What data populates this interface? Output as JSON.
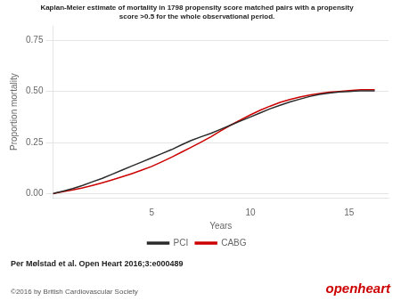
{
  "chart_data": {
    "type": "line",
    "title": [
      "Kaplan-Meier estimate of mortality in 1798 propensity score matched pairs with a propensity",
      "score >0.5 for the whole observational period."
    ],
    "x_label": "Years",
    "y_label": "Proportion mortality",
    "x": [
      0,
      0.2,
      0.5,
      1.0,
      1.5,
      2.0,
      2.5,
      3.0,
      3.5,
      4.0,
      4.5,
      5.0,
      5.5,
      6.0,
      6.5,
      7.0,
      7.5,
      8.0,
      8.5,
      9.0,
      9.5,
      10.0,
      10.5,
      11.0,
      11.5,
      12.0,
      12.5,
      13.0,
      13.5,
      14.0,
      14.5,
      15.0,
      15.3,
      15.6,
      16.0,
      16.3
    ],
    "series": [
      {
        "name": "PCI",
        "color": "#2b2b2b",
        "values": [
          0.0,
          0.005,
          0.012,
          0.025,
          0.04,
          0.058,
          0.075,
          0.095,
          0.115,
          0.135,
          0.155,
          0.175,
          0.195,
          0.215,
          0.238,
          0.26,
          0.278,
          0.295,
          0.315,
          0.335,
          0.355,
          0.375,
          0.395,
          0.415,
          0.432,
          0.448,
          0.462,
          0.475,
          0.485,
          0.492,
          0.497,
          0.5,
          0.502,
          0.503,
          0.503,
          0.503
        ]
      },
      {
        "name": "CABG",
        "color": "#cc0000",
        "values": [
          0.0,
          0.004,
          0.009,
          0.018,
          0.028,
          0.04,
          0.053,
          0.067,
          0.082,
          0.098,
          0.115,
          0.133,
          0.155,
          0.178,
          0.202,
          0.227,
          0.252,
          0.278,
          0.307,
          0.335,
          0.36,
          0.385,
          0.408,
          0.428,
          0.446,
          0.46,
          0.472,
          0.482,
          0.49,
          0.496,
          0.5,
          0.504,
          0.506,
          0.508,
          0.508,
          0.508
        ]
      }
    ],
    "xlim": [
      0,
      17
    ],
    "xticks": [
      5,
      10,
      15
    ],
    "ylim": [
      -0.02,
      0.82
    ],
    "yticks": [
      {
        "value": 0.0,
        "label": "0.00"
      },
      0.25,
      {
        "value": 0.5,
        "label": "0.50"
      },
      0.75
    ],
    "grid": "y",
    "legend": "bottom",
    "annotations": [
      {
        "text": "Per Mølstad et al. Open Heart 2016;3:e000489"
      },
      {
        "text": "©2016 by British Cardiovascular Society"
      },
      {
        "text": "openheart",
        "color": "#cc0000"
      }
    ]
  }
}
